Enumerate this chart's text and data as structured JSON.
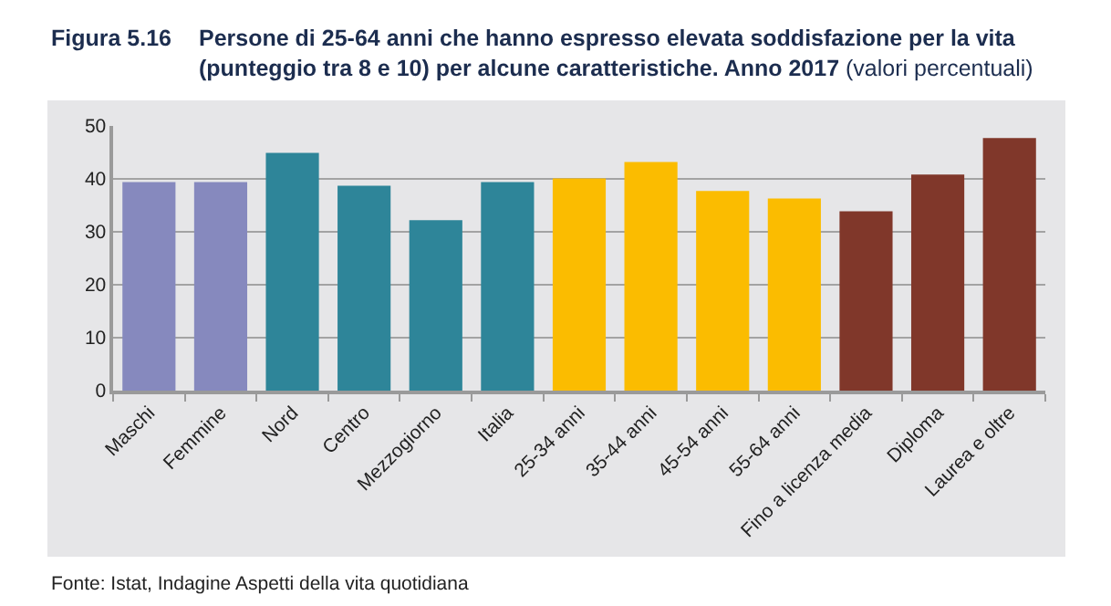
{
  "chart_data": {
    "type": "bar",
    "title": "Persone di 25-64 anni che hanno espresso elevata soddisfazione per la vita (punteggio tra 8 e 10) per alcune caratteristiche. Anno 2017 (valori percentuali)",
    "annotations": [
      "Figura 5.16",
      "Fonte: Istat, Indagine Aspetti della vita quotidiana"
    ],
    "categories": [
      "Maschi",
      "Femmine",
      "Nord",
      "Centro",
      "Mezzogiorno",
      "Italia",
      "25-34 anni",
      "35-44 anni",
      "45-54 anni",
      "55-64 anni",
      "Fino a licenza media",
      "Diploma",
      "Laurea e oltre"
    ],
    "values": [
      39.4,
      39.4,
      44.9,
      38.7,
      32.2,
      39.4,
      40.1,
      43.2,
      37.7,
      36.3,
      33.9,
      40.8,
      47.7
    ],
    "colors": [
      "#8689be",
      "#8689be",
      "#2e8599",
      "#2e8599",
      "#2e8599",
      "#2e8599",
      "#fbbc00",
      "#fbbc00",
      "#fbbc00",
      "#fbbc00",
      "#80372a",
      "#80372a",
      "#80372a"
    ],
    "ylim": [
      0,
      50
    ],
    "yticks": [
      0,
      10,
      20,
      30,
      40,
      50
    ],
    "grid": "y"
  }
}
